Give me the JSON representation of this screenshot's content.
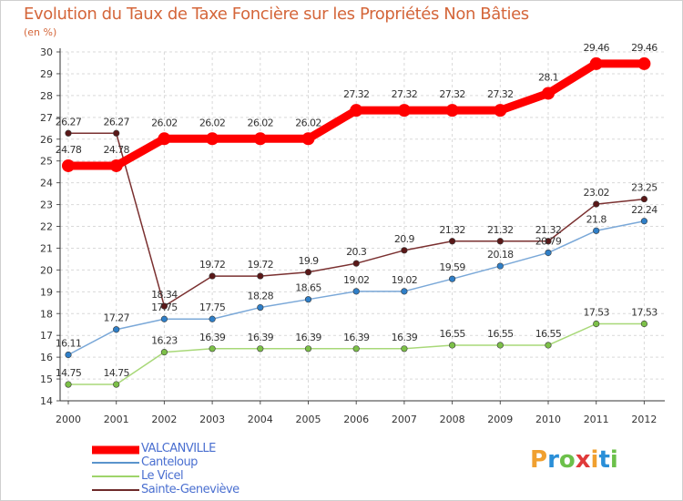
{
  "header": {
    "title": "Evolution du Taux de Taxe Foncière sur les Propriétés Non Bâties",
    "unit": "(en %)"
  },
  "logo": {
    "text": "Proxiti",
    "colors": [
      "#f0a030",
      "#2a8fd8",
      "#6cc04a",
      "#e03a3a",
      "#f0a030",
      "#2a8fd8",
      "#6cc04a"
    ]
  },
  "legend": [
    {
      "label": "VALCANVILLE",
      "color": "#ff0000"
    },
    {
      "label": "Canteloup",
      "color": "#5a94cc"
    },
    {
      "label": "Le Vicel",
      "color": "#9ed46a"
    },
    {
      "label": "Sainte-Geneviève",
      "color": "#6e2a2a"
    }
  ],
  "chart_data": {
    "type": "line",
    "title": "Evolution du Taux de Taxe Foncière sur les Propriétés Non Bâties",
    "ylabel": "(en %)",
    "ylim": [
      14,
      30
    ],
    "yticks": [
      14,
      15,
      16,
      17,
      18,
      19,
      20,
      21,
      22,
      23,
      24,
      25,
      26,
      27,
      28,
      29,
      30
    ],
    "grid": true,
    "x": [
      "2000",
      "2001",
      "2002",
      "2003",
      "2004",
      "2005",
      "2006",
      "2007",
      "2008",
      "2009",
      "2010",
      "2011",
      "2012"
    ],
    "series": [
      {
        "name": "VALCANVILLE",
        "color": "#ff0000",
        "marker": "#ff0000",
        "values": [
          24.78,
          24.78,
          26.02,
          26.02,
          26.02,
          26.02,
          27.32,
          27.32,
          27.32,
          27.32,
          28.1,
          29.46,
          29.46
        ],
        "labels": [
          "24.78",
          "24.78",
          "26.02",
          "26.02",
          "26.02",
          "26.02",
          "27.32",
          "27.32",
          "27.32",
          "27.32",
          "28.1",
          "29.46",
          "29.46"
        ]
      },
      {
        "name": "Canteloup",
        "color": "#7aa8d8",
        "marker": "#2f7fc8",
        "values": [
          16.11,
          17.27,
          17.75,
          17.75,
          18.28,
          18.65,
          19.02,
          19.02,
          19.59,
          20.18,
          20.79,
          21.8,
          22.24
        ],
        "labels": [
          "16.11",
          "17.27",
          "17.75",
          "17.75",
          "18.28",
          "18.65",
          "19.02",
          "19.02",
          "19.59",
          "20.18",
          "20.79",
          "21.8",
          "22.24"
        ]
      },
      {
        "name": "Le Vicel",
        "color": "#a8d878",
        "marker": "#7cc048",
        "values": [
          14.75,
          14.75,
          16.23,
          16.39,
          16.39,
          16.39,
          16.39,
          16.39,
          16.55,
          16.55,
          16.55,
          17.53,
          17.53
        ],
        "labels": [
          "14.75",
          "14.75",
          "16.23",
          "16.39",
          "16.39",
          "16.39",
          "16.39",
          "16.39",
          "16.55",
          "16.55",
          "16.55",
          "17.53",
          "17.53"
        ]
      },
      {
        "name": "Sainte-Geneviève",
        "color": "#7a3030",
        "marker": "#5a1818",
        "values": [
          26.27,
          26.27,
          18.34,
          19.72,
          19.72,
          19.9,
          20.3,
          20.9,
          21.32,
          21.32,
          21.32,
          23.02,
          23.25
        ],
        "labels": [
          "26.27",
          "26.27",
          "18.34",
          "19.72",
          "19.72",
          "19.9",
          "20.3",
          "20.9",
          "21.32",
          "21.32",
          "21.32",
          "23.02",
          "23.25"
        ]
      }
    ]
  }
}
